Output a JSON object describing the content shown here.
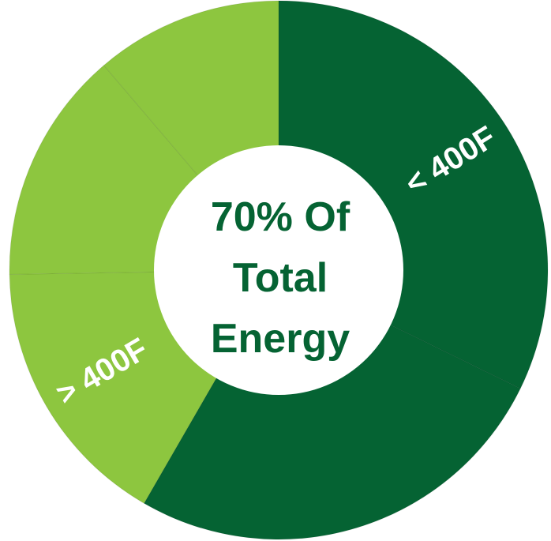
{
  "chart_data": {
    "type": "pie",
    "variant": "donut",
    "slices": [
      {
        "name": "< 400F",
        "label": "< 400F",
        "value": 38.7,
        "color": "#056333"
      },
      {
        "name": "",
        "label": "",
        "value": 31.3,
        "color": "#056333"
      },
      {
        "name": "> 400F",
        "label": "> 400F",
        "value": 19.7,
        "color": "#8dc63f"
      },
      {
        "name": "",
        "label": "",
        "value": 16.8,
        "color": "#8dc63f"
      },
      {
        "name": "",
        "label": "",
        "value": 13.5,
        "color": "#8dc63f"
      }
    ],
    "center_text": [
      "70% Of",
      "Total",
      "Energy"
    ],
    "center_text_color": "#056333",
    "background": "#ffffff",
    "legend": "none"
  }
}
